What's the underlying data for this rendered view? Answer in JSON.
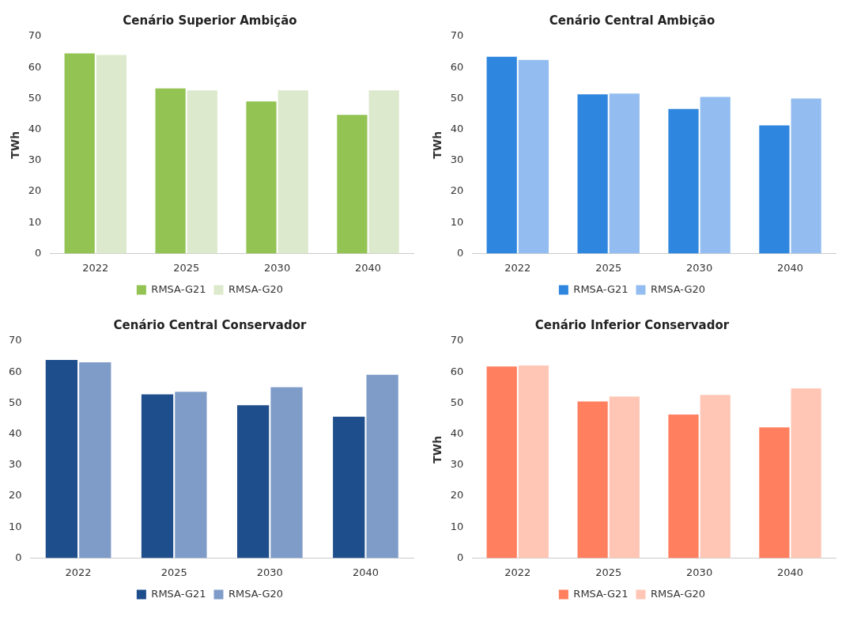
{
  "chart_data": [
    {
      "type": "bar",
      "title": "Cenário Superior Ambição",
      "ylabel": "TWh",
      "categories": [
        "2022",
        "2025",
        "2030",
        "2040"
      ],
      "series": [
        {
          "name": "RMSA-G21",
          "color": "#92c353",
          "values": [
            64.5,
            53.2,
            49,
            44.7
          ]
        },
        {
          "name": "RMSA-G20",
          "color": "#dde9cc",
          "values": [
            64,
            52.6,
            52.6,
            52.6
          ]
        }
      ],
      "ylim": [
        0,
        70
      ],
      "yticks": [
        0,
        10,
        20,
        30,
        40,
        50,
        60,
        70
      ],
      "legend": "bottom",
      "grid": false
    },
    {
      "type": "bar",
      "title": "Cenário Central Ambição",
      "ylabel": "TWh",
      "categories": [
        "2022",
        "2025",
        "2030",
        "2040"
      ],
      "series": [
        {
          "name": "RMSA-G21",
          "color": "#2e86de",
          "values": [
            63.4,
            51.3,
            46.6,
            41.3
          ]
        },
        {
          "name": "RMSA-G20",
          "color": "#93bdf0",
          "values": [
            62.4,
            51.6,
            50.5,
            50
          ]
        }
      ],
      "ylim": [
        0,
        70
      ],
      "yticks": [
        0,
        10,
        20,
        30,
        40,
        50,
        60,
        70
      ],
      "legend": "bottom",
      "grid": false
    },
    {
      "type": "bar",
      "title": "Cenário Central Conservador",
      "categories": [
        "2022",
        "2025",
        "2030",
        "2040"
      ],
      "series": [
        {
          "name": "RMSA-G21",
          "color": "#1f4e8c",
          "values": [
            63.9,
            52.8,
            49.3,
            45.6
          ]
        },
        {
          "name": "RMSA-G20",
          "color": "#7f9cc8",
          "values": [
            63.1,
            53.6,
            55.1,
            59.1
          ]
        }
      ],
      "ylim": [
        0,
        70
      ],
      "yticks": [
        0,
        10,
        20,
        30,
        40,
        50,
        60,
        70
      ],
      "legend": "bottom",
      "grid": false
    },
    {
      "type": "bar",
      "title": "Cenário Inferior Conservador",
      "ylabel": "TWh",
      "categories": [
        "2022",
        "2025",
        "2030",
        "2040"
      ],
      "series": [
        {
          "name": "RMSA-G21",
          "color": "#ff7f5e",
          "values": [
            61.8,
            50.5,
            46.3,
            42.1
          ]
        },
        {
          "name": "RMSA-G20",
          "color": "#ffc6b6",
          "values": [
            62.1,
            52.1,
            52.6,
            54.7
          ]
        }
      ],
      "ylim": [
        0,
        70
      ],
      "yticks": [
        0,
        10,
        20,
        30,
        40,
        50,
        60,
        70
      ],
      "legend": "bottom",
      "grid": false
    }
  ]
}
